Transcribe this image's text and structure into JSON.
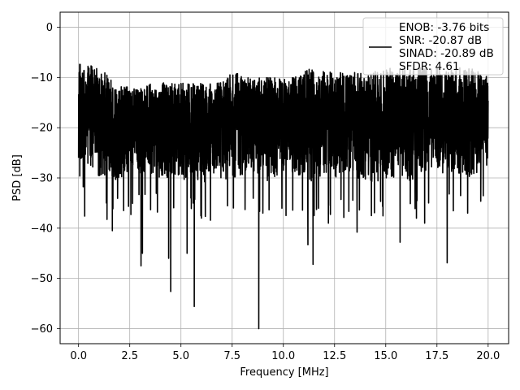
{
  "chart_data": {
    "type": "line",
    "title": "",
    "xlabel": "Frequency [MHz]",
    "ylabel": "PSD [dB]",
    "xlim": [
      -0.9,
      21.0
    ],
    "ylim": [
      -63.0,
      3.0
    ],
    "xticks": [
      0.0,
      2.5,
      5.0,
      7.5,
      10.0,
      12.5,
      15.0,
      17.5,
      20.0
    ],
    "xtick_labels": [
      "0.0",
      "2.5",
      "5.0",
      "7.5",
      "10.0",
      "12.5",
      "15.0",
      "17.5",
      "20.0"
    ],
    "yticks": [
      0,
      -10,
      -20,
      -30,
      -40,
      -50,
      -60
    ],
    "ytick_labels": [
      "0",
      "−10",
      "−20",
      "−30",
      "−40",
      "−50",
      "−60"
    ],
    "grid": true,
    "legend_position": "top-right",
    "legend": {
      "lines": [
        "ENOB: -3.76 bits",
        "SNR: -20.87 dB",
        "SINAD: -20.89 dB",
        "SFDR: 4.61"
      ]
    },
    "series": [
      {
        "color": "#000000",
        "x_range": [
          0.0,
          20.0
        ],
        "envelope_upper": [
          -7,
          -8,
          -11,
          -12,
          -11,
          -11,
          -11,
          -11,
          -9,
          -10,
          -10,
          -10,
          -8,
          -9,
          -9,
          -9,
          -8,
          -8,
          -8,
          -8,
          -8,
          -9
        ],
        "envelope_lower": [
          -26,
          -30,
          -31,
          -29,
          -30,
          -30,
          -31,
          -31,
          -30,
          -30,
          -31,
          -29,
          -31,
          -30,
          -30,
          -31,
          -30,
          -31,
          -29,
          -29,
          -31,
          -28
        ],
        "peaks": [
          {
            "x": 0.0,
            "y": 0.0
          },
          {
            "x": 0.08,
            "y": -7.4
          },
          {
            "x": 0.3,
            "y": -37.6
          },
          {
            "x": 1.65,
            "y": -40.5
          },
          {
            "x": 3.05,
            "y": -47.5
          },
          {
            "x": 3.12,
            "y": -45.0
          },
          {
            "x": 4.4,
            "y": -46.0
          },
          {
            "x": 4.5,
            "y": -52.6
          },
          {
            "x": 5.3,
            "y": -45.0
          },
          {
            "x": 5.65,
            "y": -55.6
          },
          {
            "x": 8.8,
            "y": -60.0
          },
          {
            "x": 11.2,
            "y": -43.3
          },
          {
            "x": 11.45,
            "y": -47.2
          },
          {
            "x": 13.6,
            "y": -40.8
          },
          {
            "x": 15.7,
            "y": -42.8
          },
          {
            "x": 18.0,
            "y": -46.9
          },
          {
            "x": 6.0,
            "y": -38.0
          },
          {
            "x": 9.0,
            "y": -37.0
          },
          {
            "x": 12.2,
            "y": -39.0
          },
          {
            "x": 16.9,
            "y": -39.0
          },
          {
            "x": 2.2,
            "y": -36.5
          },
          {
            "x": 14.3,
            "y": -37.5
          },
          {
            "x": 19.0,
            "y": -37.0
          }
        ]
      }
    ]
  }
}
